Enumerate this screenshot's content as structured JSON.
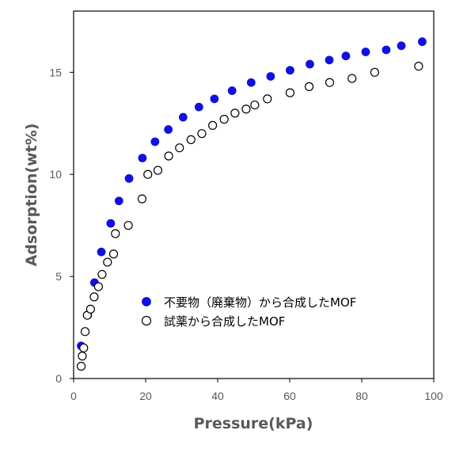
{
  "chart_data": {
    "type": "scatter",
    "title": "",
    "xlabel": "Pressure(kPa)",
    "ylabel": "Adsorption(wt%)",
    "xlim": [
      0,
      100
    ],
    "ylim": [
      0,
      18
    ],
    "xticks": [
      0,
      20,
      40,
      60,
      80,
      100
    ],
    "yticks": [
      0,
      5,
      10,
      15
    ],
    "grid": false,
    "legend_position": "lower-right-inside",
    "series": [
      {
        "name": "不要物（廃棄物）から合成したMOF",
        "marker": "filled-circle",
        "color": "#1010e0",
        "x": [
          2.1,
          3.9,
          5.8,
          7.7,
          10.3,
          12.6,
          15.4,
          19.1,
          22.6,
          26.3,
          30.4,
          34.8,
          39.1,
          44.0,
          49.3,
          54.7,
          60.1,
          65.6,
          71.0,
          75.6,
          81.1,
          86.8,
          91.0,
          96.8
        ],
        "y": [
          1.6,
          3.1,
          4.7,
          6.2,
          7.6,
          8.7,
          9.8,
          10.8,
          11.6,
          12.2,
          12.8,
          13.3,
          13.7,
          14.1,
          14.5,
          14.8,
          15.1,
          15.4,
          15.6,
          15.8,
          16.0,
          16.1,
          16.3,
          16.5
        ]
      },
      {
        "name": "試薬から合成したMOF",
        "marker": "open-circle",
        "color": "#000000",
        "x": [
          2.1,
          2.4,
          2.8,
          3.2,
          3.8,
          4.7,
          5.7,
          6.9,
          7.9,
          9.4,
          11.1,
          11.6,
          15.2,
          19.0,
          20.6,
          23.4,
          26.4,
          29.4,
          32.6,
          35.6,
          38.6,
          41.8,
          44.8,
          47.9,
          50.3,
          53.8,
          60.1,
          65.4,
          71.1,
          77.3,
          83.6,
          95.8
        ],
        "y": [
          0.6,
          1.1,
          1.5,
          2.3,
          3.1,
          3.4,
          4.0,
          4.5,
          5.1,
          5.7,
          6.1,
          7.1,
          7.5,
          8.8,
          10.0,
          10.2,
          10.9,
          11.3,
          11.7,
          12.0,
          12.4,
          12.7,
          13.0,
          13.2,
          13.4,
          13.7,
          14.0,
          14.3,
          14.5,
          14.7,
          15.0,
          15.3
        ]
      }
    ]
  }
}
